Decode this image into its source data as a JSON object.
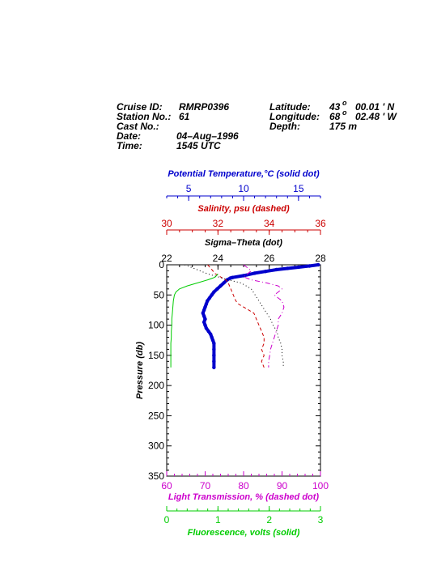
{
  "header": {
    "cruise_label": "Cruise ID:",
    "cruise_value": "RMRP0396",
    "station_label": "Station No.:",
    "station_value": "61",
    "cast_label": "Cast No.:",
    "cast_value": "",
    "date_label": "Date:",
    "date_value": "04–Aug–1996",
    "time_label": "Time:",
    "time_value": "1545 UTC",
    "lat_label": "Latitude:",
    "lat_deg": "43",
    "lat_min": "00.01 ' N",
    "lon_label": "Longitude:",
    "lon_deg": "68",
    "lon_min": "02.48 ' W",
    "depth_label": "Depth:",
    "depth_value": "175 m"
  },
  "chart_data": {
    "type": "line",
    "y_axis": {
      "label": "Pressure (db)",
      "range": [
        0,
        350
      ],
      "ticks": [
        "0",
        "50",
        "100",
        "150",
        "200",
        "250",
        "300",
        "350"
      ],
      "inverted": true
    },
    "axes": [
      {
        "key": "temperature",
        "label": "Potential Temperature,°C (solid dot)",
        "range": [
          3,
          17
        ],
        "ticks": [
          "5",
          "10",
          "15"
        ],
        "color": "#0000cc"
      },
      {
        "key": "salinity",
        "label": "Salinity, psu  (dashed)",
        "range": [
          30,
          36
        ],
        "ticks": [
          "30",
          "32",
          "34",
          "36"
        ],
        "color": "#cc0000"
      },
      {
        "key": "sigma",
        "label": "Sigma–Theta (dot)",
        "range": [
          22,
          28
        ],
        "ticks": [
          "22",
          "24",
          "26",
          "28"
        ],
        "color": "#000000"
      },
      {
        "key": "transmission",
        "label": "Light Transmission, % (dashed dot)",
        "range": [
          60,
          100
        ],
        "ticks": [
          "60",
          "70",
          "80",
          "90",
          "100"
        ],
        "color": "#cc00cc"
      },
      {
        "key": "fluorescence",
        "label": "Fluorescence, volts (solid)",
        "range": [
          0,
          3
        ],
        "ticks": [
          "0",
          "1",
          "2",
          "3"
        ],
        "color": "#00cc00"
      }
    ],
    "series": [
      {
        "key": "temperature",
        "style": "solid-dot",
        "color": "#0000cc",
        "points": [
          [
            16.8,
            0
          ],
          [
            16,
            2
          ],
          [
            15,
            4
          ],
          [
            14,
            6
          ],
          [
            13,
            8
          ],
          [
            12,
            11
          ],
          [
            11,
            14
          ],
          [
            10,
            18
          ],
          [
            9,
            21
          ],
          [
            8.8,
            22
          ],
          [
            8.5,
            25
          ],
          [
            8.2,
            30
          ],
          [
            7.9,
            35
          ],
          [
            7.6,
            40
          ],
          [
            7.3,
            45
          ],
          [
            7.1,
            50
          ],
          [
            6.9,
            55
          ],
          [
            6.7,
            60
          ],
          [
            6.6,
            65
          ],
          [
            6.5,
            70
          ],
          [
            6.4,
            75
          ],
          [
            6.3,
            80
          ],
          [
            6.4,
            85
          ],
          [
            6.5,
            90
          ],
          [
            6.4,
            95
          ],
          [
            6.5,
            100
          ],
          [
            6.6,
            105
          ],
          [
            6.8,
            110
          ],
          [
            7.0,
            115
          ],
          [
            7.1,
            120
          ],
          [
            7.2,
            125
          ],
          [
            7.3,
            130
          ],
          [
            7.3,
            140
          ],
          [
            7.3,
            150
          ],
          [
            7.3,
            160
          ],
          [
            7.3,
            170
          ]
        ]
      },
      {
        "key": "salinity",
        "style": "dashed",
        "color": "#cc0000",
        "points": [
          [
            31.6,
            0
          ],
          [
            31.7,
            5
          ],
          [
            31.8,
            10
          ],
          [
            31.9,
            15
          ],
          [
            32.1,
            20
          ],
          [
            32.3,
            25
          ],
          [
            32.4,
            30
          ],
          [
            32.5,
            40
          ],
          [
            32.6,
            50
          ],
          [
            32.7,
            60
          ],
          [
            32.8,
            65
          ],
          [
            33.0,
            70
          ],
          [
            33.2,
            75
          ],
          [
            33.4,
            80
          ],
          [
            33.5,
            90
          ],
          [
            33.6,
            100
          ],
          [
            33.7,
            110
          ],
          [
            33.8,
            120
          ],
          [
            33.8,
            130
          ],
          [
            33.7,
            140
          ],
          [
            33.8,
            150
          ],
          [
            33.7,
            160
          ],
          [
            33.8,
            170
          ]
        ]
      },
      {
        "key": "sigma",
        "style": "dot",
        "color": "#000000",
        "points": [
          [
            22.7,
            0
          ],
          [
            23.0,
            5
          ],
          [
            23.3,
            10
          ],
          [
            23.6,
            15
          ],
          [
            24.0,
            20
          ],
          [
            24.4,
            25
          ],
          [
            24.9,
            30
          ],
          [
            25.1,
            35
          ],
          [
            25.3,
            40
          ],
          [
            25.45,
            50
          ],
          [
            25.6,
            60
          ],
          [
            25.75,
            70
          ],
          [
            25.9,
            80
          ],
          [
            26.05,
            90
          ],
          [
            26.15,
            100
          ],
          [
            26.3,
            110
          ],
          [
            26.35,
            120
          ],
          [
            26.45,
            130
          ],
          [
            26.5,
            140
          ],
          [
            26.5,
            150
          ],
          [
            26.55,
            160
          ],
          [
            26.55,
            170
          ]
        ]
      },
      {
        "key": "transmission",
        "style": "dashed-dot",
        "color": "#cc00cc",
        "points": [
          [
            80,
            0
          ],
          [
            81,
            5
          ],
          [
            82,
            10
          ],
          [
            81,
            15
          ],
          [
            80,
            20
          ],
          [
            82,
            25
          ],
          [
            86,
            30
          ],
          [
            89,
            35
          ],
          [
            90,
            40
          ],
          [
            89,
            45
          ],
          [
            88,
            50
          ],
          [
            89,
            55
          ],
          [
            90,
            60
          ],
          [
            90.5,
            70
          ],
          [
            90,
            80
          ],
          [
            89,
            90
          ],
          [
            89,
            100
          ],
          [
            88.5,
            110
          ],
          [
            88,
            120
          ],
          [
            87.5,
            130
          ],
          [
            87,
            140
          ],
          [
            86.8,
            150
          ],
          [
            86.5,
            160
          ],
          [
            86.5,
            170
          ]
        ]
      },
      {
        "key": "fluorescence",
        "style": "solid",
        "color": "#00cc00",
        "points": [
          [
            1.0,
            15
          ],
          [
            0.95,
            20
          ],
          [
            0.9,
            22
          ],
          [
            0.8,
            25
          ],
          [
            0.6,
            30
          ],
          [
            0.4,
            35
          ],
          [
            0.25,
            40
          ],
          [
            0.18,
            45
          ],
          [
            0.15,
            50
          ],
          [
            0.13,
            60
          ],
          [
            0.12,
            70
          ],
          [
            0.11,
            80
          ],
          [
            0.1,
            90
          ],
          [
            0.1,
            100
          ],
          [
            0.09,
            110
          ],
          [
            0.09,
            120
          ],
          [
            0.08,
            130
          ],
          [
            0.08,
            140
          ],
          [
            0.08,
            150
          ],
          [
            0.08,
            160
          ],
          [
            0.08,
            170
          ]
        ]
      }
    ]
  }
}
